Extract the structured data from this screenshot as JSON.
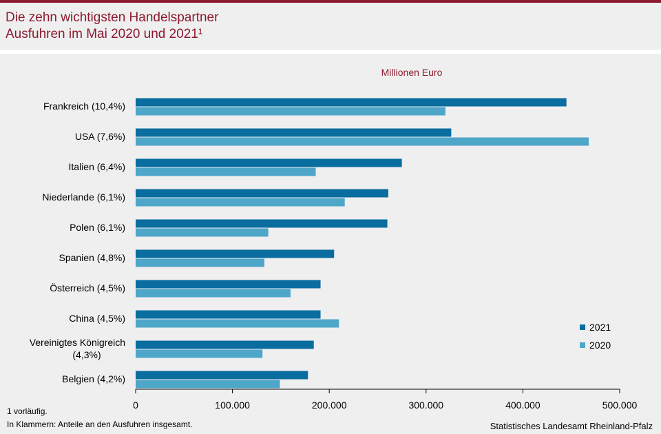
{
  "header": {
    "title_line1": "Die zehn wichtigsten Handelspartner",
    "title_line2": "Ausfuhren im Mai 2020 und 2021¹"
  },
  "footer": {
    "footnote1": "1 vorläufig.",
    "footnote2": "In Klammern: Anteile an den Ausfuhren insgesamt.",
    "source": "Statistisches Landesamt Rheinland-Pfalz"
  },
  "colors": {
    "series_2021": "#0a6d9f",
    "series_2020": "#4ea6c9",
    "title": "#8b1a2e"
  },
  "chart_data": {
    "type": "bar",
    "orientation": "horizontal",
    "unit_label": "Millionen  Euro",
    "categories": [
      [
        "Frankreich (10,4%)"
      ],
      [
        "USA (7,6%)"
      ],
      [
        "Italien (6,4%)"
      ],
      [
        "Niederlande (6,1%)"
      ],
      [
        "Polen (6,1%)"
      ],
      [
        "Spanien (4,8%)"
      ],
      [
        "Österreich (4,5%)"
      ],
      [
        "China (4,5%)"
      ],
      [
        "Vereinigtes Königreich",
        "(4,3%)"
      ],
      [
        "Belgien (4,2%)"
      ]
    ],
    "series": [
      {
        "name": "2021",
        "values": [
          445000,
          326000,
          275000,
          261000,
          260000,
          205000,
          191000,
          191000,
          184000,
          178000
        ]
      },
      {
        "name": "2020",
        "values": [
          320000,
          468000,
          186000,
          216000,
          137000,
          133000,
          160000,
          210000,
          131000,
          149000
        ]
      }
    ],
    "xlim": [
      0,
      500000
    ],
    "xticks": [
      0,
      100000,
      200000,
      300000,
      400000,
      500000
    ],
    "xtick_labels": [
      "0",
      "100.000",
      "200.000",
      "300.000",
      "400.000",
      "500.000"
    ],
    "grid": false,
    "legend": {
      "position": "right",
      "entries": [
        "2021",
        "2020"
      ]
    }
  }
}
